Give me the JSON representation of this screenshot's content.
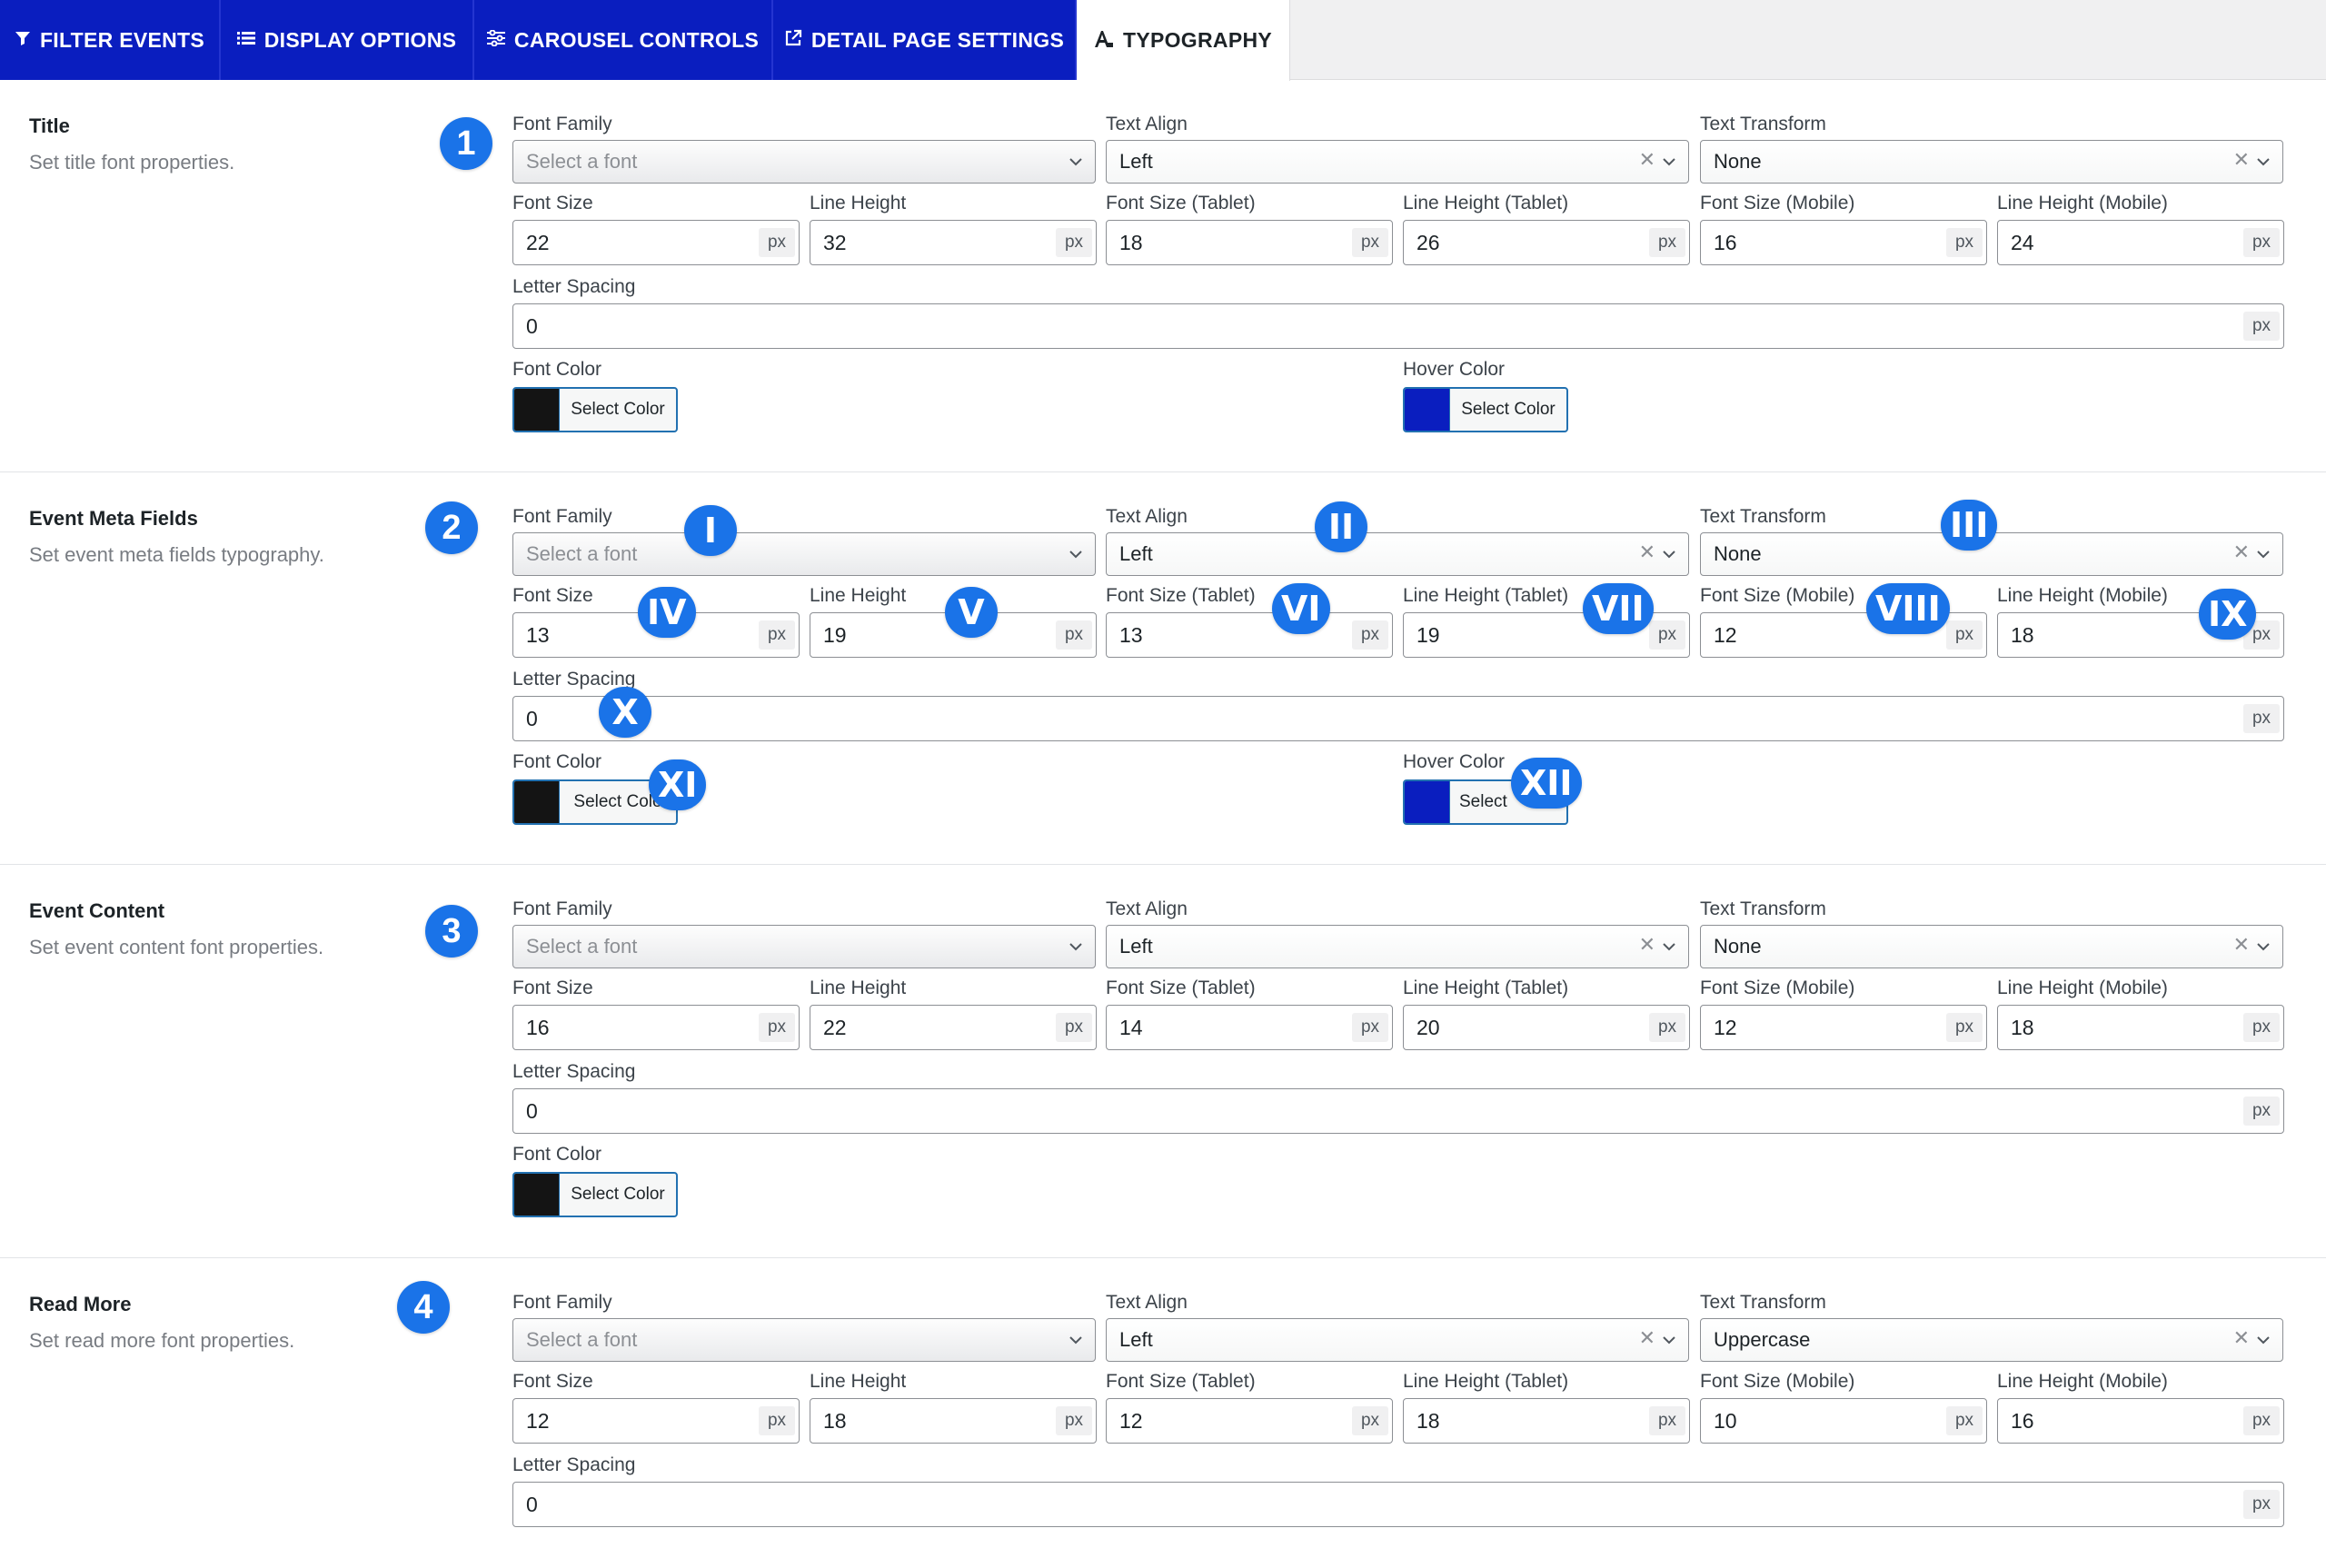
{
  "tabs": [
    {
      "label": "FILTER EVENTS",
      "icon": "filter-icon",
      "active": false
    },
    {
      "label": "DISPLAY OPTIONS",
      "icon": "list-icon",
      "active": false
    },
    {
      "label": "CAROUSEL CONTROLS",
      "icon": "sliders-icon",
      "active": false
    },
    {
      "label": "DETAIL PAGE SETTINGS",
      "icon": "external-link-icon",
      "active": false
    },
    {
      "label": "TYPOGRAPHY",
      "icon": "font-icon",
      "active": true
    }
  ],
  "labels": {
    "font_family": "Font Family",
    "text_align": "Text Align",
    "text_transform": "Text Transform",
    "font_size": "Font Size",
    "line_height": "Line Height",
    "font_size_tablet": "Font Size (Tablet)",
    "line_height_tablet": "Line Height (Tablet)",
    "font_size_mobile": "Font Size (Mobile)",
    "line_height_mobile": "Line Height (Mobile)",
    "letter_spacing": "Letter Spacing",
    "font_color": "Font Color",
    "hover_color": "Hover Color",
    "unit": "px",
    "select_color": "Select Color",
    "font_placeholder": "Select a font"
  },
  "sections": [
    {
      "badge": "1",
      "title": "Title",
      "desc": "Set title font properties.",
      "text_align": "Left",
      "text_transform": "None",
      "font_size": "22",
      "line_height": "32",
      "font_size_tablet": "18",
      "line_height_tablet": "26",
      "font_size_mobile": "16",
      "line_height_mobile": "24",
      "letter_spacing": "0",
      "font_color": "#141414",
      "hover_color": "#0a1ebf"
    },
    {
      "badge": "2",
      "title": "Event Meta Fields",
      "desc": "Set event meta fields typography.",
      "text_align": "Left",
      "text_transform": "None",
      "font_size": "13",
      "line_height": "19",
      "font_size_tablet": "13",
      "line_height_tablet": "19",
      "font_size_mobile": "12",
      "line_height_mobile": "18",
      "letter_spacing": "0",
      "font_color": "#141414",
      "hover_color": "#0a1ebf",
      "hover_button_text": "Select",
      "font_button_text": "Select Colo"
    },
    {
      "badge": "3",
      "title": "Event Content",
      "desc": "Set event content font properties.",
      "text_align": "Left",
      "text_transform": "None",
      "font_size": "16",
      "line_height": "22",
      "font_size_tablet": "14",
      "line_height_tablet": "20",
      "font_size_mobile": "12",
      "line_height_mobile": "18",
      "letter_spacing": "0",
      "font_color": "#141414"
    },
    {
      "badge": "4",
      "title": "Read More",
      "desc": "Set read more font properties.",
      "text_align": "Left",
      "text_transform": "Uppercase",
      "font_size": "12",
      "line_height": "18",
      "font_size_tablet": "12",
      "line_height_tablet": "18",
      "font_size_mobile": "10",
      "line_height_mobile": "16",
      "letter_spacing": "0"
    }
  ],
  "annotations": [
    "I",
    "II",
    "III",
    "IV",
    "V",
    "VI",
    "VII",
    "VIII",
    "IX",
    "X",
    "XI",
    "XII"
  ]
}
